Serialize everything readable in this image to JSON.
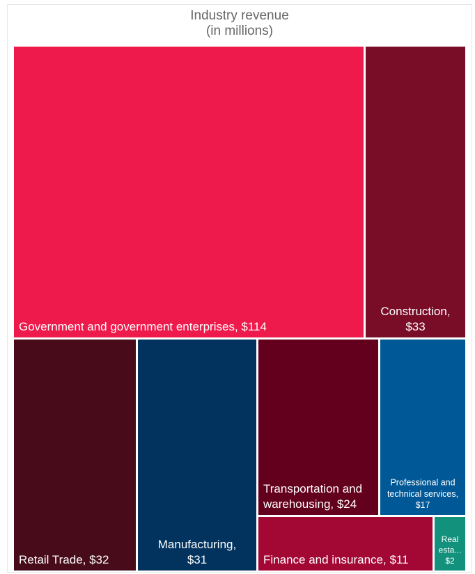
{
  "chart_data": {
    "type": "treemap",
    "title": [
      "Industry revenue",
      "(in millions)"
    ],
    "unit": "millions",
    "items": [
      {
        "label": "Government and government enterprises, $114",
        "lines": [
          "Government and government enterprises, $114"
        ],
        "value": 114,
        "color": "#ee1a4b"
      },
      {
        "label": "Construction, $33",
        "lines": [
          "Construction,",
          "$33"
        ],
        "value": 33,
        "color": "#790d28"
      },
      {
        "label": "Retail Trade, $32",
        "lines": [
          "Retail Trade, $32"
        ],
        "value": 32,
        "color": "#480b1a"
      },
      {
        "label": "Manufacturing, $31",
        "lines": [
          "Manufacturing,",
          "$31"
        ],
        "value": 31,
        "color": "#01335e"
      },
      {
        "label": "Transportation and warehousing, $24",
        "lines": [
          "Transportation and",
          "warehousing, $24"
        ],
        "value": 24,
        "color": "#63001e"
      },
      {
        "label": "Professional and technical services, $17",
        "lines": [
          "Professional and",
          "technical services,",
          "$17"
        ],
        "value": 17,
        "color": "#015896"
      },
      {
        "label": "Finance and insurance, $11",
        "lines": [
          "Finance and insurance, $11"
        ],
        "value": 11,
        "color": "#a30734"
      },
      {
        "label": "Real estate, $2",
        "lines": [
          "Real",
          "esta...",
          "$2"
        ],
        "value": 2,
        "color": "#12917c"
      }
    ]
  }
}
